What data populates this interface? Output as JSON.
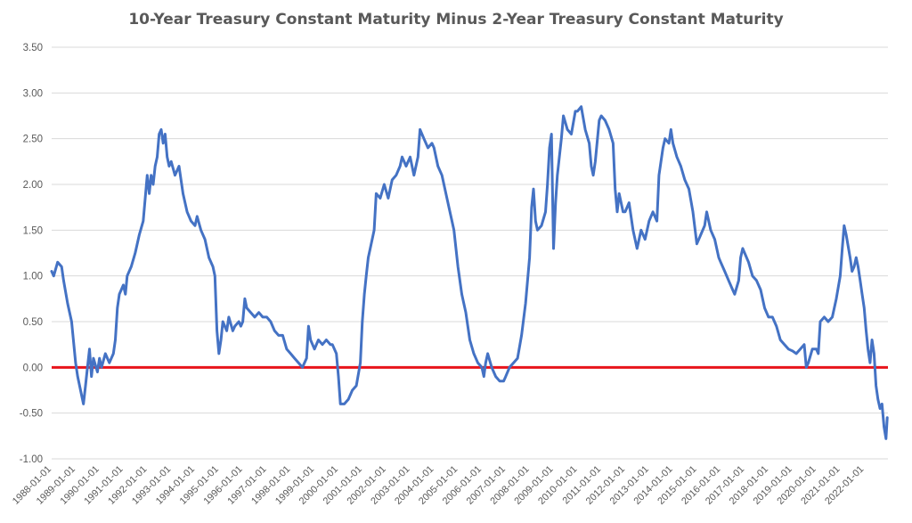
{
  "chart_data": {
    "type": "line",
    "title": "10-Year Treasury Constant Maturity Minus 2-Year Treasury Constant Maturity",
    "xlabel": "",
    "ylabel": "",
    "xlim": [
      "1988-01-01",
      "2022-12-31"
    ],
    "ylim": [
      -1.0,
      3.5
    ],
    "y_ticks": [
      "3.50",
      "3.00",
      "2.50",
      "2.00",
      "1.50",
      "1.00",
      "0.50",
      "0.00",
      "-0.50",
      "-1.00"
    ],
    "x_ticks": [
      "1988-01-01",
      "1989-01-01",
      "1990-01-01",
      "1991-01-01",
      "1992-01-01",
      "1993-01-01",
      "1994-01-01",
      "1995-01-01",
      "1996-01-01",
      "1997-01-01",
      "1998-01-01",
      "1999-01-01",
      "2000-01-01",
      "2001-01-01",
      "2002-01-01",
      "2003-01-01",
      "2004-01-01",
      "2005-01-01",
      "2006-01-01",
      "2007-01-01",
      "2008-01-01",
      "2009-01-01",
      "2010-01-01",
      "2011-01-01",
      "2012-01-01",
      "2013-01-01",
      "2014-01-01",
      "2015-01-01",
      "2016-01-01",
      "2017-01-01",
      "2018-01-01",
      "2019-01-01",
      "2020-01-01",
      "2021-01-01",
      "2022-01-01"
    ],
    "grid": true,
    "series_color": "#4472c4",
    "reference_line": {
      "y": 0.0,
      "color": "#e8141b"
    },
    "series": [
      {
        "points": [
          [
            "1988-01-01",
            1.05
          ],
          [
            "1988-02-01",
            1.0
          ],
          [
            "1988-04-01",
            1.15
          ],
          [
            "1988-06-01",
            1.1
          ],
          [
            "1988-07-01",
            0.95
          ],
          [
            "1988-09-01",
            0.7
          ],
          [
            "1988-11-01",
            0.5
          ],
          [
            "1989-01-01",
            0.05
          ],
          [
            "1989-02-01",
            -0.1
          ],
          [
            "1989-04-01",
            -0.3
          ],
          [
            "1989-05-01",
            -0.4
          ],
          [
            "1989-06-01",
            -0.2
          ],
          [
            "1989-07-01",
            0.0
          ],
          [
            "1989-08-01",
            0.2
          ],
          [
            "1989-09-01",
            -0.1
          ],
          [
            "1989-10-01",
            0.1
          ],
          [
            "1989-12-01",
            -0.05
          ],
          [
            "1990-01-01",
            0.1
          ],
          [
            "1990-02-01",
            0.0
          ],
          [
            "1990-04-01",
            0.15
          ],
          [
            "1990-06-01",
            0.05
          ],
          [
            "1990-08-01",
            0.15
          ],
          [
            "1990-09-01",
            0.3
          ],
          [
            "1990-10-01",
            0.65
          ],
          [
            "1990-11-01",
            0.8
          ],
          [
            "1991-01-01",
            0.9
          ],
          [
            "1991-02-01",
            0.8
          ],
          [
            "1991-03-01",
            1.0
          ],
          [
            "1991-05-01",
            1.1
          ],
          [
            "1991-07-01",
            1.25
          ],
          [
            "1991-09-01",
            1.45
          ],
          [
            "1991-11-01",
            1.6
          ],
          [
            "1992-01-01",
            2.1
          ],
          [
            "1992-02-01",
            1.9
          ],
          [
            "1992-03-01",
            2.1
          ],
          [
            "1992-04-01",
            2.0
          ],
          [
            "1992-05-01",
            2.2
          ],
          [
            "1992-06-01",
            2.3
          ],
          [
            "1992-07-01",
            2.55
          ],
          [
            "1992-08-01",
            2.6
          ],
          [
            "1992-09-01",
            2.45
          ],
          [
            "1992-10-01",
            2.55
          ],
          [
            "1992-11-01",
            2.3
          ],
          [
            "1992-12-01",
            2.2
          ],
          [
            "1993-01-01",
            2.25
          ],
          [
            "1993-03-01",
            2.1
          ],
          [
            "1993-05-01",
            2.2
          ],
          [
            "1993-07-01",
            1.9
          ],
          [
            "1993-09-01",
            1.7
          ],
          [
            "1993-11-01",
            1.6
          ],
          [
            "1994-01-01",
            1.55
          ],
          [
            "1994-02-01",
            1.65
          ],
          [
            "1994-04-01",
            1.5
          ],
          [
            "1994-06-01",
            1.4
          ],
          [
            "1994-08-01",
            1.2
          ],
          [
            "1994-10-01",
            1.1
          ],
          [
            "1994-11-01",
            1.0
          ],
          [
            "1994-12-01",
            0.4
          ],
          [
            "1995-01-01",
            0.15
          ],
          [
            "1995-02-01",
            0.3
          ],
          [
            "1995-03-01",
            0.5
          ],
          [
            "1995-05-01",
            0.4
          ],
          [
            "1995-06-01",
            0.55
          ],
          [
            "1995-08-01",
            0.4
          ],
          [
            "1995-09-01",
            0.45
          ],
          [
            "1995-11-01",
            0.5
          ],
          [
            "1995-12-01",
            0.45
          ],
          [
            "1996-01-01",
            0.5
          ],
          [
            "1996-02-01",
            0.75
          ],
          [
            "1996-03-01",
            0.65
          ],
          [
            "1996-05-01",
            0.6
          ],
          [
            "1996-07-01",
            0.55
          ],
          [
            "1996-09-01",
            0.6
          ],
          [
            "1996-11-01",
            0.55
          ],
          [
            "1997-01-01",
            0.55
          ],
          [
            "1997-03-01",
            0.5
          ],
          [
            "1997-05-01",
            0.4
          ],
          [
            "1997-07-01",
            0.35
          ],
          [
            "1997-09-01",
            0.35
          ],
          [
            "1997-11-01",
            0.2
          ],
          [
            "1998-01-01",
            0.15
          ],
          [
            "1998-03-01",
            0.1
          ],
          [
            "1998-05-01",
            0.05
          ],
          [
            "1998-07-01",
            0.0
          ],
          [
            "1998-09-01",
            0.1
          ],
          [
            "1998-10-01",
            0.45
          ],
          [
            "1998-11-01",
            0.3
          ],
          [
            "1999-01-01",
            0.2
          ],
          [
            "1999-03-01",
            0.3
          ],
          [
            "1999-05-01",
            0.25
          ],
          [
            "1999-07-01",
            0.3
          ],
          [
            "1999-09-01",
            0.25
          ],
          [
            "1999-10-01",
            0.25
          ],
          [
            "1999-12-01",
            0.15
          ],
          [
            "2000-01-01",
            -0.1
          ],
          [
            "2000-02-01",
            -0.4
          ],
          [
            "2000-04-01",
            -0.4
          ],
          [
            "2000-06-01",
            -0.35
          ],
          [
            "2000-08-01",
            -0.25
          ],
          [
            "2000-10-01",
            -0.2
          ],
          [
            "2000-12-01",
            0.05
          ],
          [
            "2001-01-01",
            0.5
          ],
          [
            "2001-02-01",
            0.8
          ],
          [
            "2001-03-01",
            1.0
          ],
          [
            "2001-04-01",
            1.2
          ],
          [
            "2001-05-01",
            1.3
          ],
          [
            "2001-07-01",
            1.5
          ],
          [
            "2001-08-01",
            1.9
          ],
          [
            "2001-10-01",
            1.85
          ],
          [
            "2001-12-01",
            2.0
          ],
          [
            "2002-02-01",
            1.85
          ],
          [
            "2002-04-01",
            2.05
          ],
          [
            "2002-06-01",
            2.1
          ],
          [
            "2002-08-01",
            2.2
          ],
          [
            "2002-09-01",
            2.3
          ],
          [
            "2002-11-01",
            2.2
          ],
          [
            "2003-01-01",
            2.3
          ],
          [
            "2003-03-01",
            2.1
          ],
          [
            "2003-05-01",
            2.3
          ],
          [
            "2003-06-01",
            2.6
          ],
          [
            "2003-08-01",
            2.5
          ],
          [
            "2003-10-01",
            2.4
          ],
          [
            "2003-12-01",
            2.45
          ],
          [
            "2004-01-01",
            2.4
          ],
          [
            "2004-03-01",
            2.2
          ],
          [
            "2004-05-01",
            2.1
          ],
          [
            "2004-07-01",
            1.9
          ],
          [
            "2004-09-01",
            1.7
          ],
          [
            "2004-11-01",
            1.5
          ],
          [
            "2005-01-01",
            1.1
          ],
          [
            "2005-03-01",
            0.8
          ],
          [
            "2005-05-01",
            0.6
          ],
          [
            "2005-07-01",
            0.3
          ],
          [
            "2005-09-01",
            0.15
          ],
          [
            "2005-11-01",
            0.05
          ],
          [
            "2006-01-01",
            0.0
          ],
          [
            "2006-02-01",
            -0.1
          ],
          [
            "2006-03-01",
            0.05
          ],
          [
            "2006-04-01",
            0.15
          ],
          [
            "2006-06-01",
            0.0
          ],
          [
            "2006-08-01",
            -0.1
          ],
          [
            "2006-10-01",
            -0.15
          ],
          [
            "2006-12-01",
            -0.15
          ],
          [
            "2007-01-01",
            -0.1
          ],
          [
            "2007-03-01",
            0.0
          ],
          [
            "2007-05-01",
            0.05
          ],
          [
            "2007-07-01",
            0.1
          ],
          [
            "2007-09-01",
            0.35
          ],
          [
            "2007-11-01",
            0.7
          ],
          [
            "2008-01-01",
            1.2
          ],
          [
            "2008-02-01",
            1.75
          ],
          [
            "2008-03-01",
            1.95
          ],
          [
            "2008-04-01",
            1.6
          ],
          [
            "2008-05-01",
            1.5
          ],
          [
            "2008-07-01",
            1.55
          ],
          [
            "2008-09-01",
            1.7
          ],
          [
            "2008-10-01",
            2.0
          ],
          [
            "2008-11-01",
            2.4
          ],
          [
            "2008-12-01",
            2.55
          ],
          [
            "2009-01-01",
            1.3
          ],
          [
            "2009-02-01",
            1.8
          ],
          [
            "2009-03-01",
            2.1
          ],
          [
            "2009-05-01",
            2.5
          ],
          [
            "2009-06-01",
            2.75
          ],
          [
            "2009-08-01",
            2.6
          ],
          [
            "2009-10-01",
            2.55
          ],
          [
            "2009-12-01",
            2.8
          ],
          [
            "2010-01-01",
            2.8
          ],
          [
            "2010-03-01",
            2.85
          ],
          [
            "2010-05-01",
            2.6
          ],
          [
            "2010-07-01",
            2.45
          ],
          [
            "2010-08-01",
            2.2
          ],
          [
            "2010-09-01",
            2.1
          ],
          [
            "2010-10-01",
            2.25
          ],
          [
            "2010-12-01",
            2.7
          ],
          [
            "2011-01-01",
            2.75
          ],
          [
            "2011-03-01",
            2.7
          ],
          [
            "2011-05-01",
            2.6
          ],
          [
            "2011-07-01",
            2.45
          ],
          [
            "2011-08-01",
            1.95
          ],
          [
            "2011-09-01",
            1.7
          ],
          [
            "2011-10-01",
            1.9
          ],
          [
            "2011-12-01",
            1.7
          ],
          [
            "2012-01-01",
            1.7
          ],
          [
            "2012-03-01",
            1.8
          ],
          [
            "2012-05-01",
            1.5
          ],
          [
            "2012-07-01",
            1.3
          ],
          [
            "2012-09-01",
            1.5
          ],
          [
            "2012-11-01",
            1.4
          ],
          [
            "2013-01-01",
            1.6
          ],
          [
            "2013-03-01",
            1.7
          ],
          [
            "2013-05-01",
            1.6
          ],
          [
            "2013-06-01",
            2.1
          ],
          [
            "2013-08-01",
            2.4
          ],
          [
            "2013-09-01",
            2.5
          ],
          [
            "2013-11-01",
            2.45
          ],
          [
            "2013-12-01",
            2.6
          ],
          [
            "2014-01-01",
            2.45
          ],
          [
            "2014-03-01",
            2.3
          ],
          [
            "2014-05-01",
            2.2
          ],
          [
            "2014-07-01",
            2.05
          ],
          [
            "2014-09-01",
            1.95
          ],
          [
            "2014-11-01",
            1.7
          ],
          [
            "2015-01-01",
            1.35
          ],
          [
            "2015-03-01",
            1.45
          ],
          [
            "2015-05-01",
            1.55
          ],
          [
            "2015-06-01",
            1.7
          ],
          [
            "2015-08-01",
            1.5
          ],
          [
            "2015-10-01",
            1.4
          ],
          [
            "2015-12-01",
            1.2
          ],
          [
            "2016-01-01",
            1.15
          ],
          [
            "2016-03-01",
            1.05
          ],
          [
            "2016-05-01",
            0.95
          ],
          [
            "2016-07-01",
            0.85
          ],
          [
            "2016-08-01",
            0.8
          ],
          [
            "2016-10-01",
            0.95
          ],
          [
            "2016-11-01",
            1.2
          ],
          [
            "2016-12-01",
            1.3
          ],
          [
            "2017-01-01",
            1.25
          ],
          [
            "2017-03-01",
            1.15
          ],
          [
            "2017-05-01",
            1.0
          ],
          [
            "2017-07-01",
            0.95
          ],
          [
            "2017-09-01",
            0.85
          ],
          [
            "2017-11-01",
            0.65
          ],
          [
            "2018-01-01",
            0.55
          ],
          [
            "2018-03-01",
            0.55
          ],
          [
            "2018-05-01",
            0.45
          ],
          [
            "2018-07-01",
            0.3
          ],
          [
            "2018-09-01",
            0.25
          ],
          [
            "2018-11-01",
            0.2
          ],
          [
            "2019-01-01",
            0.18
          ],
          [
            "2019-03-01",
            0.15
          ],
          [
            "2019-05-01",
            0.2
          ],
          [
            "2019-07-01",
            0.25
          ],
          [
            "2019-08-01",
            0.0
          ],
          [
            "2019-09-01",
            0.05
          ],
          [
            "2019-11-01",
            0.2
          ],
          [
            "2020-01-01",
            0.2
          ],
          [
            "2020-02-01",
            0.15
          ],
          [
            "2020-03-01",
            0.5
          ],
          [
            "2020-05-01",
            0.55
          ],
          [
            "2020-07-01",
            0.5
          ],
          [
            "2020-09-01",
            0.55
          ],
          [
            "2020-11-01",
            0.75
          ],
          [
            "2021-01-01",
            1.0
          ],
          [
            "2021-02-01",
            1.3
          ],
          [
            "2021-03-01",
            1.55
          ],
          [
            "2021-04-01",
            1.45
          ],
          [
            "2021-06-01",
            1.2
          ],
          [
            "2021-07-01",
            1.05
          ],
          [
            "2021-08-01",
            1.1
          ],
          [
            "2021-09-01",
            1.2
          ],
          [
            "2021-10-01",
            1.1
          ],
          [
            "2021-11-01",
            0.95
          ],
          [
            "2021-12-01",
            0.8
          ],
          [
            "2022-01-01",
            0.65
          ],
          [
            "2022-02-01",
            0.4
          ],
          [
            "2022-03-01",
            0.2
          ],
          [
            "2022-04-01",
            0.05
          ],
          [
            "2022-05-01",
            0.3
          ],
          [
            "2022-06-01",
            0.15
          ],
          [
            "2022-07-01",
            -0.2
          ],
          [
            "2022-08-01",
            -0.35
          ],
          [
            "2022-09-01",
            -0.45
          ],
          [
            "2022-10-01",
            -0.4
          ],
          [
            "2022-11-01",
            -0.65
          ],
          [
            "2022-12-01",
            -0.78
          ],
          [
            "2022-12-20",
            -0.55
          ]
        ]
      }
    ]
  }
}
